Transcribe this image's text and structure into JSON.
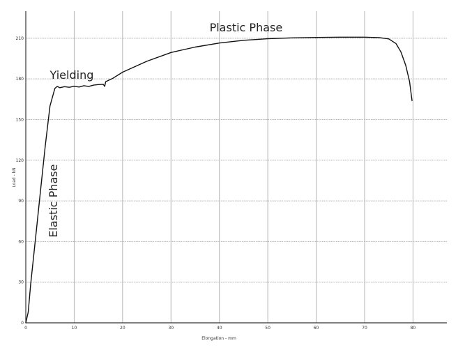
{
  "chart_data": {
    "type": "line",
    "title": "",
    "xlabel": "Elongation - mm",
    "ylabel": "Load - kN",
    "xlim": [
      0,
      87
    ],
    "ylim": [
      0,
      230
    ],
    "x_ticks": [
      0,
      10,
      20,
      30,
      40,
      50,
      60,
      70,
      80
    ],
    "y_ticks": [
      0,
      30,
      60,
      90,
      120,
      150,
      180,
      210
    ],
    "x_tick_labels": [
      "0",
      "10",
      "20",
      "30",
      "40",
      "50",
      "60",
      "70",
      "80"
    ],
    "y_tick_labels": [
      "0",
      "30",
      "60",
      "90",
      "120",
      "150",
      "180",
      "210"
    ],
    "grid": true,
    "legend": "none",
    "series": [
      {
        "color": "#111111",
        "x": [
          0.0,
          0.5,
          1.0,
          2.0,
          3.0,
          4.0,
          5.0,
          6.0,
          6.5,
          7.0,
          8.0,
          9.0,
          10.0,
          11.0,
          12.0,
          13.0,
          14.0,
          15.0,
          16.0,
          16.3,
          16.5,
          18.0,
          20.0,
          25.0,
          30.0,
          35.0,
          40.0,
          45.0,
          50.0,
          55.0,
          60.0,
          65.0,
          70.0,
          73.0,
          75.0,
          76.5,
          77.5,
          78.5,
          79.3,
          79.8
        ],
        "y": [
          0.0,
          8.0,
          28.0,
          62.0,
          96.0,
          130.0,
          160.0,
          173.0,
          174.5,
          173.5,
          174.3,
          173.8,
          174.6,
          174.0,
          175.0,
          174.5,
          175.4,
          175.8,
          176.0,
          174.5,
          178.0,
          180.5,
          185.0,
          193.0,
          199.5,
          203.5,
          206.5,
          208.5,
          209.7,
          210.3,
          210.6,
          210.8,
          210.8,
          210.5,
          209.5,
          206.0,
          200.0,
          190.0,
          178.0,
          164.0
        ]
      }
    ],
    "annotations": [
      {
        "text": "Plastic Phase",
        "x": 45.5,
        "y": 215,
        "rotation": 0
      },
      {
        "text": "Yielding",
        "x": 9.5,
        "y": 180,
        "rotation": 0
      },
      {
        "text": "Elastic Phase",
        "x": 6.5,
        "y": 90,
        "rotation": -90
      }
    ],
    "colors": {
      "grid": "#b5b5b5",
      "axis": "#333333",
      "line": "#111111",
      "text": "#222222"
    }
  }
}
